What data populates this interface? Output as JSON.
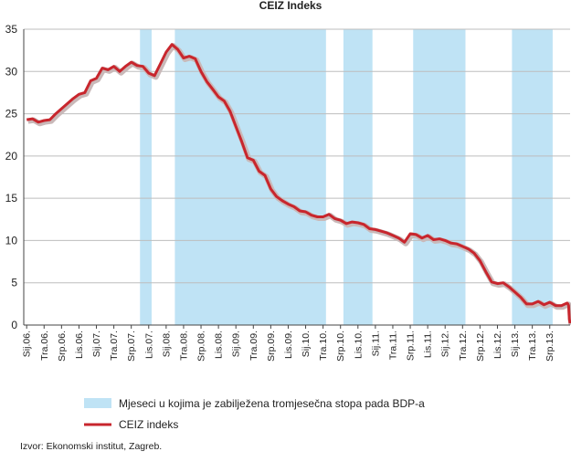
{
  "chart_data": {
    "type": "line",
    "title": "CEIZ Indeks",
    "ylim": [
      0,
      35
    ],
    "yticks": [
      0,
      5,
      10,
      15,
      20,
      25,
      30,
      35
    ],
    "x_labels": [
      "Sij.06.",
      "Tra.06.",
      "Srp.06.",
      "Lis.06.",
      "Sij.07.",
      "Tra.07.",
      "Srp.07.",
      "Lis.07.",
      "Sij.08.",
      "Tra.08.",
      "Srp.08.",
      "Lis.08.",
      "Sij.09.",
      "Tra.09.",
      "Srp.09.",
      "Lis.09.",
      "Sij.10.",
      "Tra.10.",
      "Srp.10.",
      "Lis.10.",
      "Sij.11.",
      "Tra.11.",
      "Srp.11.",
      "Lis.11.",
      "Sij.12.",
      "Tra.12.",
      "Srp.12.",
      "Lis.12.",
      "Sij.13.",
      "Tra.13.",
      "Srp.13."
    ],
    "recession_periods": [
      {
        "start": "2007-09",
        "end": "2007-10"
      },
      {
        "start": "2008-03",
        "end": "2010-04"
      },
      {
        "start": "2010-08",
        "end": "2010-12"
      },
      {
        "start": "2011-08",
        "end": "2012-04"
      },
      {
        "start": "2013-01",
        "end": "2013-07"
      }
    ],
    "series": [
      {
        "name": "CEIZ indeks",
        "color": "#c8262d",
        "x": [
          "2006-01",
          "2006-02",
          "2006-03",
          "2006-04",
          "2006-05",
          "2006-06",
          "2006-07",
          "2006-08",
          "2006-09",
          "2006-10",
          "2006-11",
          "2006-12",
          "2007-01",
          "2007-02",
          "2007-03",
          "2007-04",
          "2007-05",
          "2007-06",
          "2007-07",
          "2007-08",
          "2007-09",
          "2007-10",
          "2007-11",
          "2007-12",
          "2008-01",
          "2008-02",
          "2008-03",
          "2008-04",
          "2008-05",
          "2008-06",
          "2008-07",
          "2008-08",
          "2008-09",
          "2008-10",
          "2008-11",
          "2008-12",
          "2009-01",
          "2009-02",
          "2009-03",
          "2009-04",
          "2009-05",
          "2009-06",
          "2009-07",
          "2009-08",
          "2009-09",
          "2009-10",
          "2009-11",
          "2009-12",
          "2010-01",
          "2010-02",
          "2010-03",
          "2010-04",
          "2010-05",
          "2010-06",
          "2010-07",
          "2010-08",
          "2010-09",
          "2010-10",
          "2010-11",
          "2010-12",
          "2011-01",
          "2011-02",
          "2011-03",
          "2011-04",
          "2011-05",
          "2011-06",
          "2011-07",
          "2011-08",
          "2011-09",
          "2011-10",
          "2011-11",
          "2011-12",
          "2012-01",
          "2012-02",
          "2012-03",
          "2012-04",
          "2012-05",
          "2012-06",
          "2012-07",
          "2012-08",
          "2012-09",
          "2012-10",
          "2012-11",
          "2012-12",
          "2013-01",
          "2013-02",
          "2013-03",
          "2013-04",
          "2013-05",
          "2013-06",
          "2013-07",
          "2013-08",
          "2013-09",
          "2013-10"
        ],
        "values": [
          24.3,
          24.4,
          24.0,
          24.2,
          24.3,
          25.0,
          25.6,
          26.2,
          26.8,
          27.3,
          27.5,
          28.9,
          29.2,
          30.4,
          30.2,
          30.6,
          30.0,
          30.6,
          31.1,
          30.7,
          30.6,
          29.8,
          29.5,
          30.9,
          32.3,
          33.2,
          32.6,
          31.6,
          31.8,
          31.5,
          30.0,
          28.8,
          27.9,
          27.0,
          26.5,
          25.3,
          23.5,
          21.7,
          19.8,
          19.5,
          18.2,
          17.7,
          16.1,
          15.2,
          14.7,
          14.3,
          14.0,
          13.5,
          13.4,
          13.0,
          12.8,
          12.8,
          13.1,
          12.6,
          12.4,
          12.0,
          12.2,
          12.1,
          11.9,
          11.4,
          11.3,
          11.1,
          10.9,
          10.6,
          10.3,
          9.8,
          10.8,
          10.7,
          10.3,
          10.6,
          10.1,
          10.2,
          10.0,
          9.7,
          9.6,
          9.3,
          9.0,
          8.5,
          7.6,
          6.3,
          5.1,
          4.9,
          5.0,
          4.5,
          3.9,
          3.3,
          2.5,
          2.5,
          2.8,
          2.4,
          2.7,
          2.3,
          2.3,
          2.6
        ],
        "end_values": [
          2.5,
          2.3,
          0.7,
          0.2
        ]
      }
    ],
    "legend": [
      {
        "label": "Mjeseci u kojima je zabilježena tromjesečna stopa pada BDP-a",
        "color": "#bfe3f5"
      },
      {
        "label": "CEIZ indeks",
        "color": "#c8262d"
      }
    ],
    "source": "Izvor: Ekonomski institut, Zagreb.",
    "grid": "horizontal",
    "legend_position": "bottom-left"
  }
}
